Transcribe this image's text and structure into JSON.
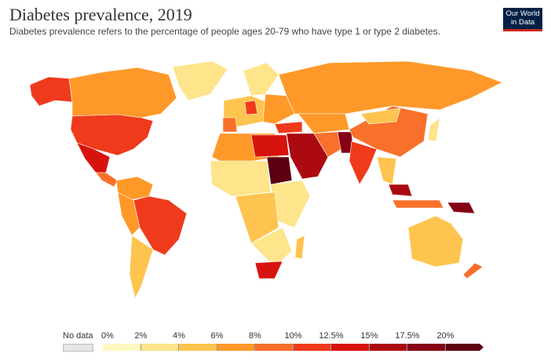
{
  "title": "Diabetes prevalence, 2019",
  "subtitle": "Diabetes prevalence refers to the percentage of people ages 20-79 who have type 1 or type 2 diabetes.",
  "logo": {
    "line1": "Our World",
    "line2": "in Data",
    "bg": "#002147",
    "accent": "#ce261e"
  },
  "legend": {
    "no_data_label": "No data",
    "no_data_color": "#e6e6e6",
    "ticks": [
      "0%",
      "2%",
      "4%",
      "6%",
      "8%",
      "10%",
      "12.5%",
      "15%",
      "17.5%",
      "20%"
    ],
    "bins": [
      {
        "from": 0,
        "to": 2,
        "color": "#fff8c0"
      },
      {
        "from": 2,
        "to": 4,
        "color": "#fee48a"
      },
      {
        "from": 4,
        "to": 6,
        "color": "#fec44f"
      },
      {
        "from": 6,
        "to": 8,
        "color": "#fe9929"
      },
      {
        "from": 8,
        "to": 10,
        "color": "#f8702a"
      },
      {
        "from": 10,
        "to": 12.5,
        "color": "#f03a1c"
      },
      {
        "from": 12.5,
        "to": 15,
        "color": "#d7130e"
      },
      {
        "from": 15,
        "to": 17.5,
        "color": "#ab0a10"
      },
      {
        "from": 17.5,
        "to": 20,
        "color": "#850014"
      },
      {
        "from": 20,
        "to": null,
        "color": "#5c0011"
      }
    ]
  }
}
